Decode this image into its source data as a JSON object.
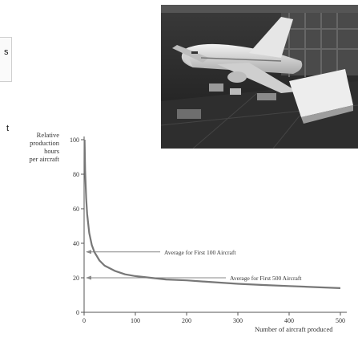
{
  "left_fragments": [
    "s",
    "t"
  ],
  "photo": {
    "icon": "airplane-assembly-photo"
  },
  "chart_data": {
    "type": "line",
    "ylabel_lines": [
      "Relative",
      "production",
      "hours",
      "per aircraft"
    ],
    "xlabel": "Number of aircraft produced",
    "xlim": [
      0,
      500
    ],
    "ylim": [
      0,
      100
    ],
    "xticks": [
      0,
      100,
      200,
      300,
      400,
      500
    ],
    "yticks": [
      0,
      20,
      40,
      60,
      80,
      100
    ],
    "series": [
      {
        "x": [
          1,
          2,
          4,
          6,
          10,
          15,
          20,
          30,
          40,
          60,
          80,
          100,
          130,
          160,
          200,
          250,
          300,
          350,
          400,
          450,
          500
        ],
        "y": [
          100,
          82,
          66,
          57,
          46,
          39,
          35,
          30,
          27,
          24,
          22,
          21,
          20,
          19,
          18.5,
          17.5,
          16.5,
          15.8,
          15.2,
          14.6,
          14
        ]
      }
    ],
    "annotations": [
      {
        "text": "Average for First 100 Aircraft",
        "y": 35
      },
      {
        "text": "Average for First 500 Aircraft",
        "y": 20
      }
    ]
  }
}
